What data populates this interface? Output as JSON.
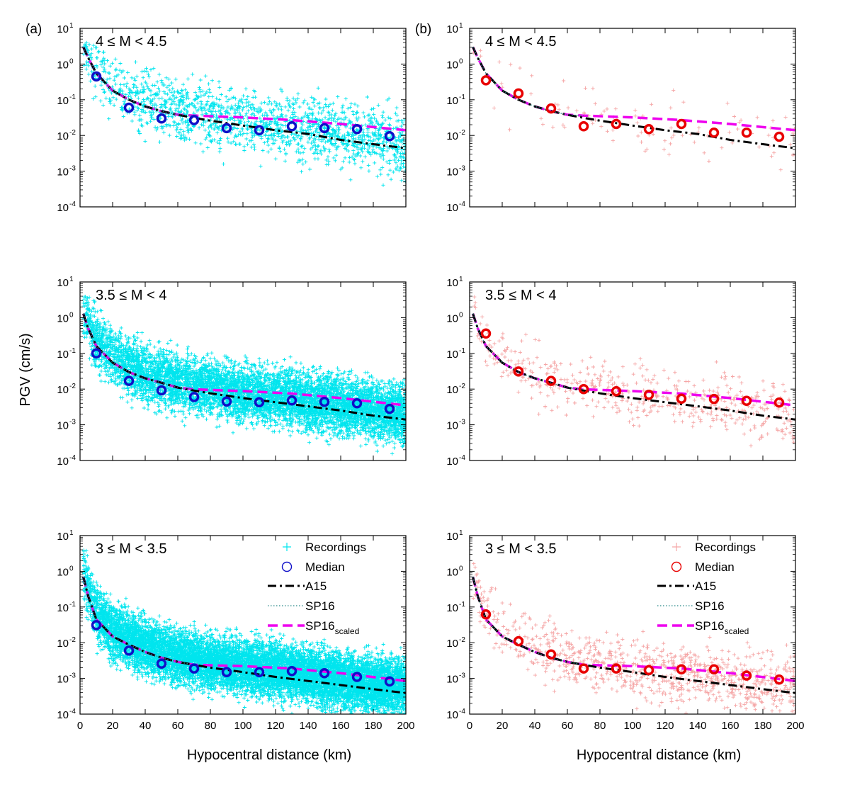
{
  "figure_labels": {
    "a": "(a)",
    "b": "(b)"
  },
  "axes": {
    "ylabel": "PGV (cm/s)",
    "xlabel": "Hypocentral distance (km)",
    "x_ticks": [
      "0",
      "20",
      "40",
      "60",
      "80",
      "100",
      "120",
      "140",
      "160",
      "180",
      "200"
    ],
    "y_tick_base": "10",
    "y_tick_exponents": [
      "1",
      "0",
      "-1",
      "-2",
      "-3",
      "-4"
    ]
  },
  "legend": {
    "recordings": "Recordings",
    "median": "Median",
    "a15": "A15",
    "sp16": "SP16",
    "sp16_scaled_main": "SP16",
    "sp16_scaled_sub": "scaled"
  },
  "colors": {
    "recordings_a": "#00e5ee",
    "median_a": "#1010c8",
    "recordings_b": "#f5a6a6",
    "median_b": "#e80000",
    "a15": "#000000",
    "sp16": "#2a8a8a",
    "sp16_scaled": "#ee00ee"
  },
  "chart_data": [
    {
      "type": "scatter",
      "panel": "a",
      "magnitude_label": "4 ≤ M < 4.5",
      "xlim": [
        0,
        200
      ],
      "ylim": [
        0.0001,
        10
      ],
      "yscale": "log",
      "median": {
        "x": [
          10,
          30,
          50,
          70,
          90,
          110,
          130,
          150,
          170,
          190
        ],
        "y": [
          0.45,
          0.06,
          0.03,
          0.027,
          0.016,
          0.014,
          0.018,
          0.016,
          0.015,
          0.0095
        ]
      },
      "a15": {
        "x": [
          2,
          5,
          10,
          20,
          30,
          40,
          50,
          60,
          70,
          80,
          100,
          120,
          140,
          160,
          180,
          200
        ],
        "y": [
          3.0,
          1.5,
          0.55,
          0.18,
          0.1,
          0.065,
          0.048,
          0.038,
          0.031,
          0.026,
          0.019,
          0.014,
          0.011,
          0.0075,
          0.0057,
          0.0044
        ]
      },
      "sp16": {
        "x": [
          2,
          5,
          10,
          20,
          30,
          40,
          50,
          60,
          70
        ],
        "y": [
          3.0,
          1.5,
          0.55,
          0.18,
          0.1,
          0.065,
          0.048,
          0.038,
          0.036
        ]
      },
      "sp16_scaled": {
        "x": [
          2,
          5,
          10,
          20,
          30,
          40,
          50,
          60,
          70,
          100,
          130,
          160,
          200
        ],
        "y": [
          3.0,
          1.5,
          0.55,
          0.18,
          0.1,
          0.065,
          0.048,
          0.038,
          0.036,
          0.032,
          0.027,
          0.021,
          0.014
        ]
      },
      "recordings": {
        "count": 1600,
        "scatter_decades": 0.45,
        "min_y": 0.0002
      }
    },
    {
      "type": "scatter",
      "panel": "b",
      "magnitude_label": "4 ≤ M < 4.5",
      "xlim": [
        0,
        200
      ],
      "ylim": [
        0.0001,
        10
      ],
      "yscale": "log",
      "median": {
        "x": [
          10,
          30,
          50,
          70,
          90,
          110,
          130,
          150,
          170,
          190
        ],
        "y": [
          0.35,
          0.15,
          0.057,
          0.018,
          0.021,
          0.015,
          0.021,
          0.012,
          0.012,
          0.0092
        ]
      },
      "a15": {
        "x": [
          2,
          5,
          10,
          20,
          30,
          40,
          50,
          60,
          70,
          80,
          100,
          120,
          140,
          160,
          180,
          200
        ],
        "y": [
          3.0,
          1.5,
          0.55,
          0.18,
          0.1,
          0.065,
          0.048,
          0.038,
          0.031,
          0.026,
          0.019,
          0.014,
          0.011,
          0.0075,
          0.0057,
          0.0044
        ]
      },
      "sp16": {
        "x": [
          2,
          5,
          10,
          20,
          30,
          40,
          50,
          60,
          70
        ],
        "y": [
          3.0,
          1.5,
          0.55,
          0.18,
          0.1,
          0.065,
          0.048,
          0.038,
          0.036
        ]
      },
      "sp16_scaled": {
        "x": [
          2,
          5,
          10,
          20,
          30,
          40,
          50,
          60,
          70,
          100,
          130,
          160,
          200
        ],
        "y": [
          3.0,
          1.5,
          0.55,
          0.18,
          0.1,
          0.065,
          0.048,
          0.038,
          0.036,
          0.032,
          0.027,
          0.021,
          0.014
        ]
      },
      "recordings": {
        "count": 110,
        "scatter_decades": 0.45,
        "min_y": 0.0004
      }
    },
    {
      "type": "scatter",
      "panel": "a",
      "magnitude_label": "3.5 ≤ M < 4",
      "xlim": [
        0,
        200
      ],
      "ylim": [
        0.0001,
        10
      ],
      "yscale": "log",
      "median": {
        "x": [
          10,
          30,
          50,
          70,
          90,
          110,
          130,
          150,
          170,
          190
        ],
        "y": [
          0.1,
          0.017,
          0.0092,
          0.006,
          0.0045,
          0.0043,
          0.0048,
          0.0044,
          0.004,
          0.0028
        ]
      },
      "a15": {
        "x": [
          2,
          5,
          10,
          20,
          30,
          40,
          50,
          60,
          70,
          80,
          100,
          120,
          140,
          160,
          180,
          200
        ],
        "y": [
          1.3,
          0.5,
          0.16,
          0.055,
          0.03,
          0.02,
          0.015,
          0.011,
          0.0091,
          0.0076,
          0.0056,
          0.0043,
          0.0033,
          0.0025,
          0.0018,
          0.0014
        ]
      },
      "sp16": {
        "x": [
          2,
          5,
          10,
          20,
          30,
          40,
          50,
          60,
          70
        ],
        "y": [
          1.3,
          0.5,
          0.16,
          0.055,
          0.03,
          0.02,
          0.015,
          0.011,
          0.0098
        ]
      },
      "sp16_scaled": {
        "x": [
          2,
          5,
          10,
          20,
          30,
          40,
          50,
          60,
          70,
          100,
          130,
          160,
          200
        ],
        "y": [
          1.3,
          0.5,
          0.16,
          0.055,
          0.03,
          0.02,
          0.015,
          0.011,
          0.0098,
          0.0088,
          0.0075,
          0.0056,
          0.0035
        ]
      },
      "recordings": {
        "count": 7000,
        "scatter_decades": 0.4,
        "min_y": 0.00015
      }
    },
    {
      "type": "scatter",
      "panel": "b",
      "magnitude_label": "3.5 ≤ M < 4",
      "xlim": [
        0,
        200
      ],
      "ylim": [
        0.0001,
        10
      ],
      "yscale": "log",
      "median": {
        "x": [
          10,
          30,
          50,
          70,
          90,
          110,
          130,
          150,
          170,
          190
        ],
        "y": [
          0.36,
          0.031,
          0.017,
          0.01,
          0.0087,
          0.0069,
          0.0054,
          0.0053,
          0.0047,
          0.0042
        ]
      },
      "a15": {
        "x": [
          2,
          5,
          10,
          20,
          30,
          40,
          50,
          60,
          70,
          80,
          100,
          120,
          140,
          160,
          180,
          200
        ],
        "y": [
          1.3,
          0.5,
          0.16,
          0.055,
          0.03,
          0.02,
          0.015,
          0.011,
          0.0091,
          0.0076,
          0.0056,
          0.0043,
          0.0033,
          0.0025,
          0.0018,
          0.0014
        ]
      },
      "sp16": {
        "x": [
          2,
          5,
          10,
          20,
          30,
          40,
          50,
          60,
          70
        ],
        "y": [
          1.3,
          0.5,
          0.16,
          0.055,
          0.03,
          0.02,
          0.015,
          0.011,
          0.0098
        ]
      },
      "sp16_scaled": {
        "x": [
          2,
          5,
          10,
          20,
          30,
          40,
          50,
          60,
          70,
          100,
          130,
          160,
          200
        ],
        "y": [
          1.3,
          0.5,
          0.16,
          0.055,
          0.03,
          0.02,
          0.015,
          0.011,
          0.0098,
          0.0088,
          0.0075,
          0.0056,
          0.0035
        ]
      },
      "recordings": {
        "count": 500,
        "scatter_decades": 0.42,
        "min_y": 0.00025
      }
    },
    {
      "type": "scatter",
      "panel": "a",
      "magnitude_label": "3 ≤ M < 3.5",
      "xlim": [
        0,
        200
      ],
      "ylim": [
        0.0001,
        10
      ],
      "yscale": "log",
      "median": {
        "x": [
          10,
          30,
          50,
          70,
          90,
          110,
          130,
          150,
          170,
          190
        ],
        "y": [
          0.031,
          0.006,
          0.0026,
          0.0019,
          0.0015,
          0.0015,
          0.0016,
          0.0014,
          0.0011,
          0.00082
        ]
      },
      "a15": {
        "x": [
          2,
          5,
          10,
          20,
          30,
          40,
          50,
          60,
          70,
          80,
          100,
          120,
          140,
          160,
          180,
          200
        ],
        "y": [
          0.7,
          0.2,
          0.045,
          0.015,
          0.0088,
          0.0055,
          0.0038,
          0.0029,
          0.0024,
          0.002,
          0.0015,
          0.0011,
          0.00085,
          0.00065,
          0.0005,
          0.00039
        ]
      },
      "sp16": {
        "x": [
          2,
          5,
          10,
          20,
          30,
          40,
          50,
          60,
          70
        ],
        "y": [
          0.7,
          0.2,
          0.045,
          0.015,
          0.0088,
          0.0055,
          0.0038,
          0.0029,
          0.0024
        ]
      },
      "sp16_scaled": {
        "x": [
          2,
          5,
          10,
          20,
          30,
          40,
          50,
          60,
          70,
          100,
          130,
          160,
          200
        ],
        "y": [
          0.7,
          0.2,
          0.045,
          0.015,
          0.0088,
          0.0055,
          0.0038,
          0.0029,
          0.0024,
          0.0022,
          0.0019,
          0.0014,
          0.00085
        ]
      },
      "recordings": {
        "count": 11000,
        "scatter_decades": 0.38,
        "min_y": 0.0001
      }
    },
    {
      "type": "scatter",
      "panel": "b",
      "magnitude_label": "3 ≤ M < 3.5",
      "xlim": [
        0,
        200
      ],
      "ylim": [
        0.0001,
        10
      ],
      "yscale": "log",
      "median": {
        "x": [
          10,
          30,
          50,
          70,
          90,
          110,
          130,
          150,
          170,
          190
        ],
        "y": [
          0.062,
          0.011,
          0.0047,
          0.0019,
          0.0019,
          0.0017,
          0.0018,
          0.0018,
          0.0012,
          0.00093
        ]
      },
      "a15": {
        "x": [
          2,
          5,
          10,
          20,
          30,
          40,
          50,
          60,
          70,
          80,
          100,
          120,
          140,
          160,
          180,
          200
        ],
        "y": [
          0.7,
          0.2,
          0.045,
          0.015,
          0.0088,
          0.0055,
          0.0038,
          0.0029,
          0.0024,
          0.002,
          0.0015,
          0.0011,
          0.00085,
          0.00065,
          0.0005,
          0.00039
        ]
      },
      "sp16": {
        "x": [
          2,
          5,
          10,
          20,
          30,
          40,
          50,
          60,
          70
        ],
        "y": [
          0.7,
          0.2,
          0.045,
          0.015,
          0.0088,
          0.0055,
          0.0038,
          0.0029,
          0.0024
        ]
      },
      "sp16_scaled": {
        "x": [
          2,
          5,
          10,
          20,
          30,
          40,
          50,
          60,
          70,
          100,
          130,
          160,
          200
        ],
        "y": [
          0.7,
          0.2,
          0.045,
          0.015,
          0.0088,
          0.0055,
          0.0038,
          0.0029,
          0.0024,
          0.0022,
          0.0019,
          0.0014,
          0.00085
        ]
      },
      "recordings": {
        "count": 900,
        "scatter_decades": 0.42,
        "min_y": 0.0001
      }
    }
  ]
}
